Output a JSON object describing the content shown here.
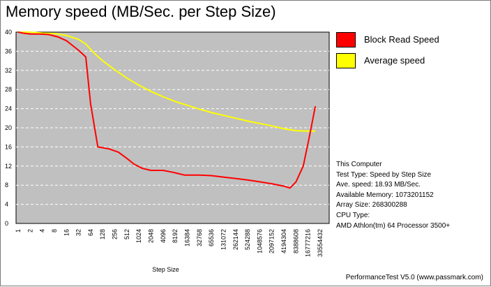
{
  "window": {
    "title": "Memory speed (MB/Sec. per Step Size)",
    "footer": "PerformanceTest V5.0 (www.passmark.com)"
  },
  "legend": [
    {
      "label": "Block Read Speed",
      "color": "#ff0000"
    },
    {
      "label": "Average speed",
      "color": "#ffff00"
    }
  ],
  "info": [
    "This Computer",
    "Test Type: Speed by Step Size",
    "Ave. speed: 18.93 MB/Sec.",
    "Available Memory: 1073201152",
    "Array Size: 268300288",
    "CPU Type:",
    "AMD Athlon(tm) 64 Processor 3500+"
  ],
  "chart_data": {
    "type": "line",
    "title": "Memory speed (MB/Sec. per Step Size)",
    "xlabel": "Step Size",
    "ylabel": "",
    "ylim": [
      0,
      40
    ],
    "yticks": [
      0,
      4,
      8,
      12,
      16,
      20,
      24,
      28,
      32,
      36,
      40
    ],
    "categories": [
      "1",
      "2",
      "4",
      "8",
      "16",
      "32",
      "64",
      "128",
      "256",
      "512",
      "1024",
      "2048",
      "4096",
      "8192",
      "16384",
      "32768",
      "65536",
      "131072",
      "262144",
      "524288",
      "1048576",
      "2097152",
      "4194304",
      "8388608",
      "16777216",
      "33554432"
    ],
    "grid": true,
    "legend_position": "right",
    "series": [
      {
        "name": "Block Read Speed",
        "color": "#ff0000",
        "points": [
          [
            0.0,
            40.0
          ],
          [
            0.4,
            39.8
          ],
          [
            1,
            39.6
          ],
          [
            1.8,
            39.6
          ],
          [
            2.5,
            39.5
          ],
          [
            3.3,
            39.0
          ],
          [
            4.0,
            38.2
          ],
          [
            4.6,
            37.0
          ],
          [
            5.1,
            36.0
          ],
          [
            5.6,
            34.8
          ],
          [
            6.0,
            25.0
          ],
          [
            6.6,
            16.0
          ],
          [
            7.5,
            15.6
          ],
          [
            8.3,
            14.9
          ],
          [
            9.0,
            13.6
          ],
          [
            9.6,
            12.4
          ],
          [
            10.3,
            11.5
          ],
          [
            11.0,
            11.1
          ],
          [
            12.0,
            11.1
          ],
          [
            12.8,
            10.7
          ],
          [
            13.8,
            10.1
          ],
          [
            15.0,
            10.1
          ],
          [
            16.0,
            10.0
          ],
          [
            17.0,
            9.7
          ],
          [
            18.0,
            9.4
          ],
          [
            19.0,
            9.1
          ],
          [
            20.0,
            8.7
          ],
          [
            21.0,
            8.3
          ],
          [
            22.0,
            7.8
          ],
          [
            22.5,
            7.4
          ],
          [
            23.0,
            8.7
          ],
          [
            23.6,
            12.0
          ],
          [
            24.1,
            18.0
          ],
          [
            24.6,
            24.5
          ]
        ]
      },
      {
        "name": "Average speed",
        "color": "#ffff00",
        "points": [
          [
            0.0,
            40.0
          ],
          [
            1,
            40.0
          ],
          [
            2,
            39.8
          ],
          [
            3,
            39.7
          ],
          [
            4,
            39.3
          ],
          [
            5,
            38.5
          ],
          [
            5.6,
            37.5
          ],
          [
            6.3,
            35.6
          ],
          [
            7,
            34.0
          ],
          [
            8,
            32.1
          ],
          [
            9,
            30.4
          ],
          [
            10,
            28.9
          ],
          [
            11,
            27.6
          ],
          [
            12,
            26.5
          ],
          [
            13,
            25.5
          ],
          [
            14,
            24.7
          ],
          [
            15,
            23.9
          ],
          [
            16,
            23.2
          ],
          [
            17,
            22.6
          ],
          [
            18,
            22.0
          ],
          [
            19,
            21.4
          ],
          [
            20,
            20.9
          ],
          [
            21,
            20.4
          ],
          [
            22,
            19.8
          ],
          [
            23,
            19.4
          ],
          [
            24,
            19.3
          ],
          [
            24.6,
            19.3
          ]
        ]
      }
    ]
  }
}
